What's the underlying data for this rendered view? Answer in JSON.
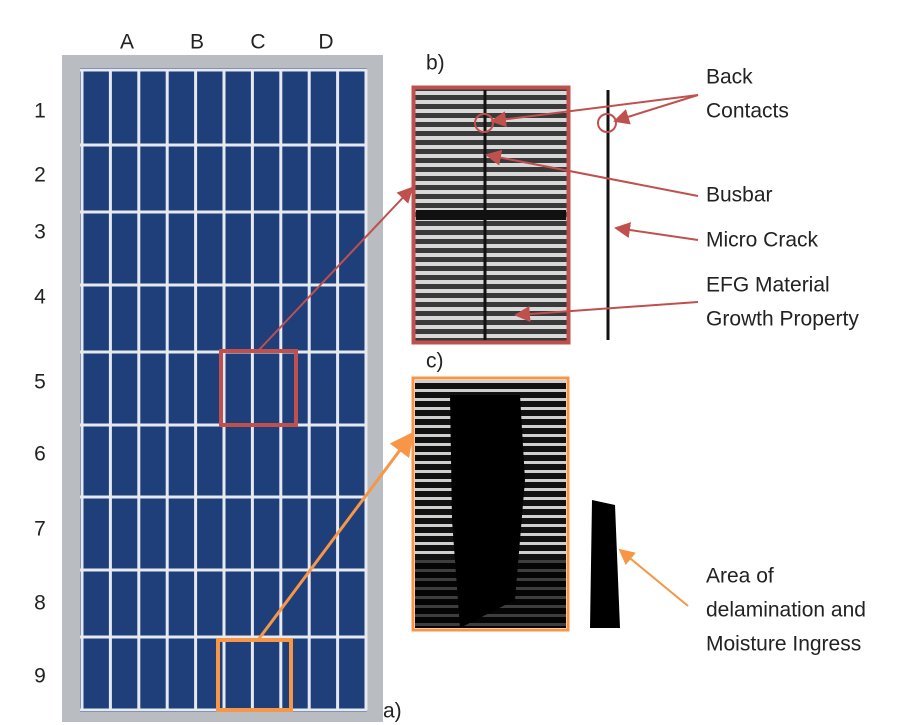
{
  "columns": [
    "A",
    "B",
    "C",
    "D"
  ],
  "rows": [
    "1",
    "2",
    "3",
    "4",
    "5",
    "6",
    "7",
    "8",
    "9"
  ],
  "panel_labels": [
    "a)",
    "b)",
    "c)"
  ],
  "annotations": [
    {
      "lines": [
        "Back",
        "Contacts"
      ]
    },
    {
      "lines": [
        "Busbar"
      ]
    },
    {
      "lines": [
        "Micro Crack"
      ]
    },
    {
      "lines": [
        "EFG Material",
        "Growth Property"
      ]
    },
    {
      "lines": [
        "Area of",
        "delamination and",
        "Moisture Ingress"
      ]
    }
  ]
}
